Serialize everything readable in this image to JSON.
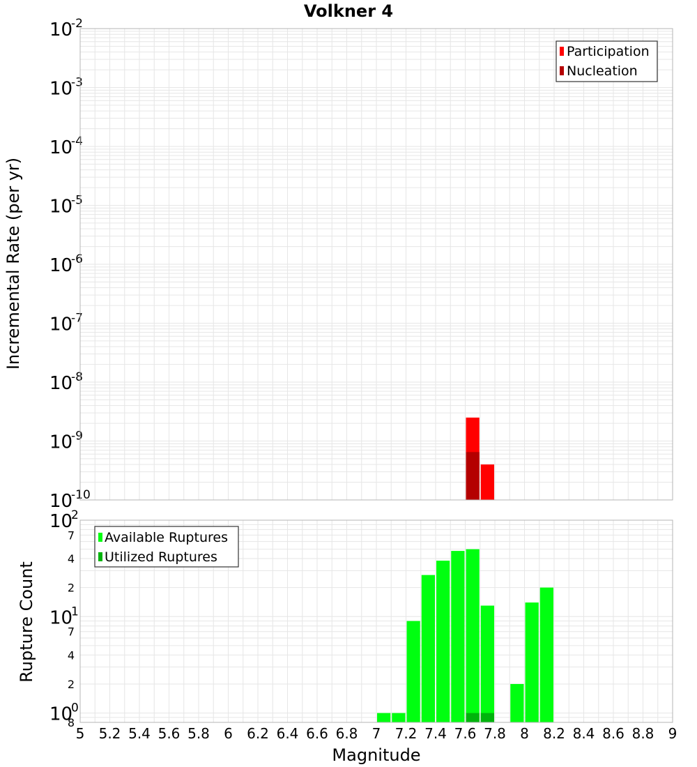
{
  "title": "Volkner 4",
  "colors": {
    "participation": "#ff0000",
    "nucleation": "#b40000",
    "available": "#00ff10",
    "utilized": "#00b40c",
    "grid": "#e6e6e6",
    "frame": "#b4b4b4"
  },
  "chart_data": [
    {
      "type": "bar",
      "title": "Volkner 4",
      "xlabel": "Magnitude",
      "ylabel": "Incremental Rate (per yr)",
      "yscale": "log",
      "xlim": [
        5,
        9
      ],
      "ylim": [
        1e-10,
        0.01
      ],
      "y_tick_exponents": [
        "-10",
        "-9",
        "-8",
        "-7",
        "-6",
        "-5",
        "-4",
        "-3",
        "-2"
      ],
      "bin_width": 0.1,
      "grid": true,
      "legend_position": "top-right",
      "series": [
        {
          "name": "Participation",
          "color": "#ff0000",
          "x": [
            7.65,
            7.75
          ],
          "values": [
            2.5e-09,
            4e-10
          ]
        },
        {
          "name": "Nucleation",
          "color": "#b40000",
          "x": [
            7.65
          ],
          "values": [
            6.5e-10
          ]
        }
      ]
    },
    {
      "type": "bar",
      "xlabel": "Magnitude",
      "ylabel": "Rupture Count",
      "yscale": "log",
      "xlim": [
        5,
        9
      ],
      "ylim": [
        0.8,
        100
      ],
      "y_tick_exponents": [
        "0",
        "1",
        "2"
      ],
      "y_minor_labels": [
        "8",
        "2",
        "4",
        "7",
        "2",
        "4",
        "7"
      ],
      "x_ticks": [
        "5",
        "5.2",
        "5.4",
        "5.6",
        "5.8",
        "6",
        "6.2",
        "6.4",
        "6.6",
        "6.8",
        "7",
        "7.2",
        "7.4",
        "7.6",
        "7.8",
        "8",
        "8.2",
        "8.4",
        "8.6",
        "8.8",
        "9"
      ],
      "bin_width": 0.1,
      "grid": true,
      "legend_position": "top-left",
      "series": [
        {
          "name": "Available Ruptures",
          "color": "#00ff10",
          "x": [
            7.05,
            7.15,
            7.25,
            7.35,
            7.45,
            7.55,
            7.65,
            7.75,
            7.95,
            8.05,
            8.15
          ],
          "values": [
            1,
            1,
            9,
            27,
            38,
            48,
            50,
            13,
            2,
            14,
            20
          ]
        },
        {
          "name": "Utilized Ruptures",
          "color": "#00b40c",
          "x": [
            7.65,
            7.75
          ],
          "values": [
            1,
            1
          ]
        }
      ]
    }
  ]
}
